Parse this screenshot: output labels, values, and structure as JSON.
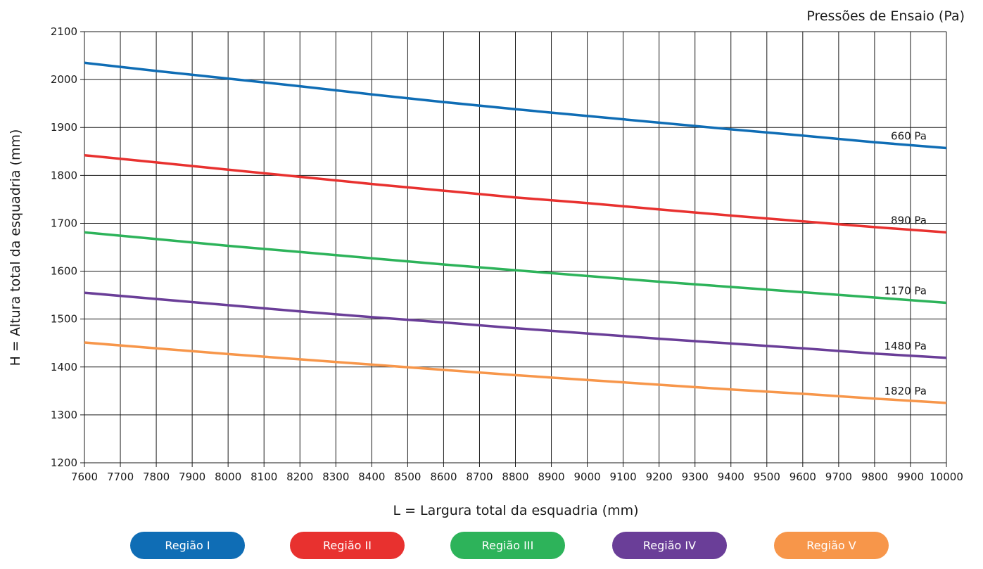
{
  "chart_data": {
    "type": "line",
    "title": "Pressões de Ensaio (Pa)",
    "xlabel": "L = Largura total da esquadria (mm)",
    "ylabel": "H = Altura total da esquadria (mm)",
    "xlim": [
      7600,
      10000
    ],
    "ylim": [
      1200,
      2100
    ],
    "x_ticks": [
      7600,
      7700,
      7800,
      7900,
      8000,
      8100,
      8200,
      8300,
      8400,
      8500,
      8600,
      8700,
      8800,
      8900,
      9000,
      9100,
      9200,
      9300,
      9400,
      9500,
      9600,
      9700,
      9800,
      9900,
      10000
    ],
    "y_ticks": [
      1200,
      1300,
      1400,
      1500,
      1600,
      1700,
      1800,
      1900,
      2000,
      2100
    ],
    "grid": true,
    "x": [
      7600,
      7800,
      8000,
      8200,
      8400,
      8600,
      8800,
      9000,
      9200,
      9400,
      9600,
      9800,
      10000
    ],
    "series": [
      {
        "name": "Região I",
        "label": "660 Pa",
        "color": "#0F6DB5",
        "values": [
          2035,
          2018,
          2002,
          1986,
          1969,
          1953,
          1938,
          1924,
          1910,
          1896,
          1883,
          1869,
          1857
        ]
      },
      {
        "name": "Região II",
        "label": "890 Pa",
        "color": "#E8312F",
        "values": [
          1842,
          1827,
          1812,
          1797,
          1782,
          1768,
          1754,
          1742,
          1729,
          1716,
          1704,
          1692,
          1681
        ]
      },
      {
        "name": "Região III",
        "label": "1170 Pa",
        "color": "#2DB35A",
        "values": [
          1681,
          1667,
          1653,
          1640,
          1627,
          1614,
          1602,
          1590,
          1578,
          1567,
          1556,
          1545,
          1534
        ]
      },
      {
        "name": "Região IV",
        "label": "1480 Pa",
        "color": "#6A3E98",
        "values": [
          1555,
          1542,
          1529,
          1516,
          1504,
          1493,
          1481,
          1470,
          1459,
          1449,
          1439,
          1428,
          1419
        ]
      },
      {
        "name": "Região V",
        "label": "1820 Pa",
        "color": "#F7964A",
        "values": [
          1451,
          1439,
          1427,
          1416,
          1405,
          1394,
          1383,
          1373,
          1363,
          1353,
          1344,
          1334,
          1325
        ]
      }
    ]
  },
  "legend": [
    {
      "label": "Região I",
      "color": "#0F6DB5"
    },
    {
      "label": "Região II",
      "color": "#E8312F"
    },
    {
      "label": "Região III",
      "color": "#2DB35A"
    },
    {
      "label": "Região IV",
      "color": "#6A3E98"
    },
    {
      "label": "Região V",
      "color": "#F7964A"
    }
  ]
}
